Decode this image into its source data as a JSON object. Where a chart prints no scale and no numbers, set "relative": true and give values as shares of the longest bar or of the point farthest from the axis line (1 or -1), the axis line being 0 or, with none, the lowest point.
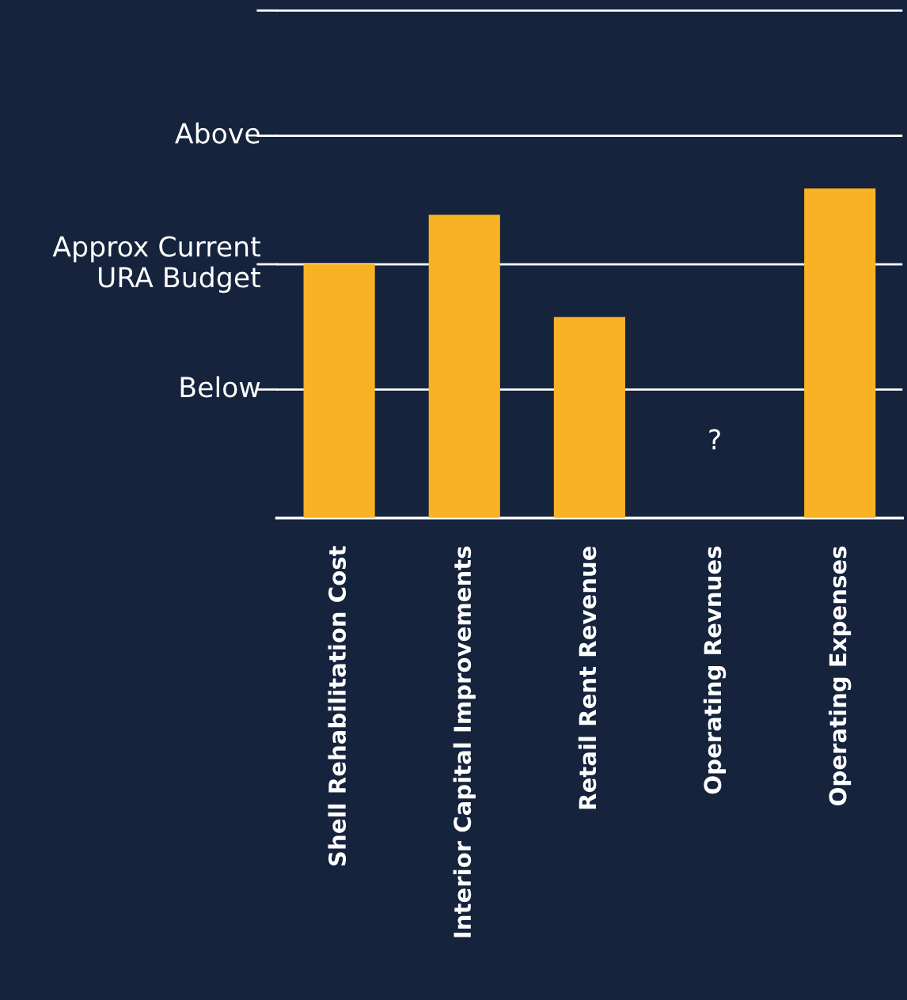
{
  "chart_data": {
    "type": "bar",
    "categories": [
      "Shell Rehabilitation Cost",
      "Interior Capital Improvements",
      "Retail Rent Revenue",
      "Operating Revnues",
      "Operating Expenses"
    ],
    "values": [
      0.77,
      0.92,
      0.61,
      null,
      1
    ],
    "color": "#f9b224",
    "relative": true,
    "ref_lines": [
      {
        "axis": "y",
        "value": 0.39,
        "label": "Below",
        "color": "#ffffff"
      },
      {
        "axis": "y",
        "value": 0.77,
        "label": "Approx Current\nURA Budget",
        "color": "#ffffff"
      },
      {
        "axis": "y",
        "value": 1.16,
        "label": "Above",
        "color": "#ffffff"
      },
      {
        "axis": "y",
        "value": 1.54,
        "label": null,
        "color": "#ffffff"
      }
    ],
    "annotations": [
      "?"
    ]
  }
}
